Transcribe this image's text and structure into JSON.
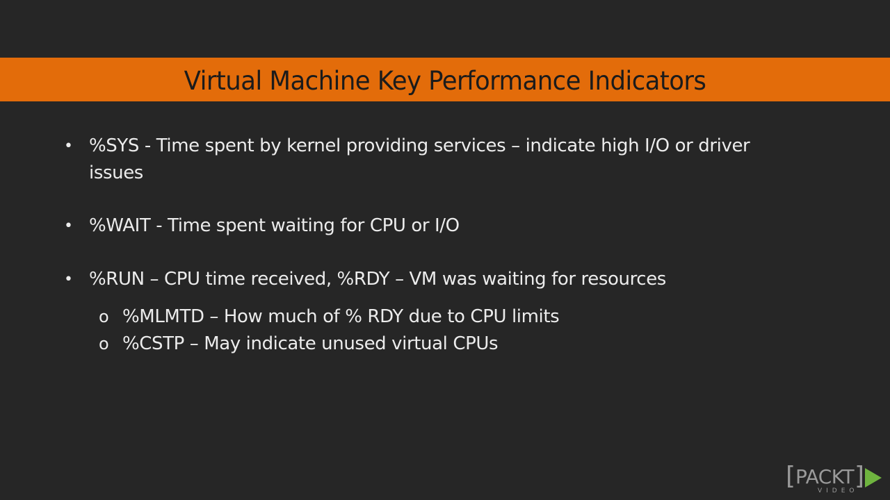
{
  "slide": {
    "title": "Virtual Machine Key Performance Indicators",
    "accent_color": "#e36c0a",
    "background_color": "#262626",
    "bullets": [
      {
        "marker": "•",
        "text": "%SYS - Time spent by kernel providing services – indicate high I/O or driver issues"
      },
      {
        "marker": "•",
        "text": "%WAIT - Time spent waiting for CPU or I/O"
      },
      {
        "marker": "•",
        "text": "%RUN – CPU time received, %RDY – VM was waiting for resources",
        "sub_items": [
          {
            "marker": "o",
            "text": "%MLMTD – How much of % RDY due to CPU limits"
          },
          {
            "marker": "o",
            "text": "%CSTP – May indicate unused virtual CPUs"
          }
        ]
      }
    ]
  },
  "logo": {
    "left_bracket": "[",
    "brand": "PACKT",
    "right_bracket": "]",
    "subtitle": "VIDEO",
    "play_icon": "play-triangle-icon",
    "play_color": "#6fb43f"
  }
}
